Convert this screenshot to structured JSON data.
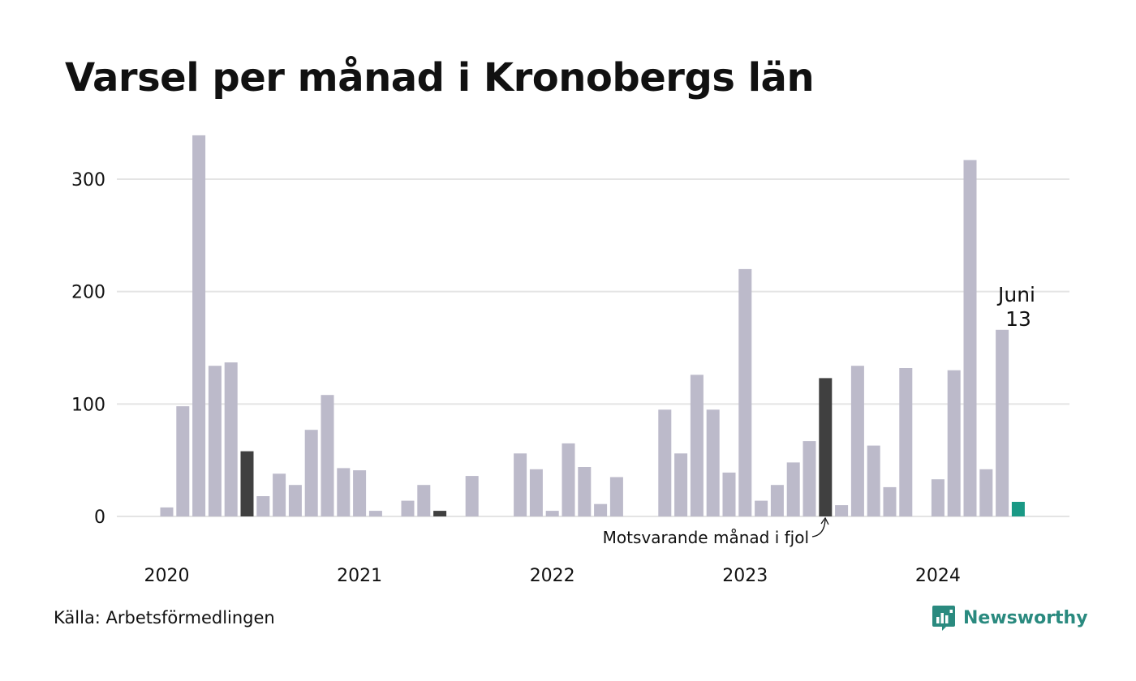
{
  "title": "Varsel per månad i Kronobergs län",
  "source": "Källa: Arbetsförmedlingen",
  "logo_text": "Newsworthy",
  "colors": {
    "bar": "#bcbaca",
    "previous_year": "#404040",
    "current": "#1a9985",
    "grid": "#e4e4e4",
    "logo": "#2a8a7f"
  },
  "chart_data": {
    "type": "bar",
    "title": "Varsel per månad i Kronobergs län",
    "xlabel": "",
    "ylabel": "",
    "ylim": [
      0,
      340
    ],
    "yticks": [
      0,
      100,
      200,
      300
    ],
    "grid": true,
    "year_labels": [
      "2020",
      "2021",
      "2022",
      "2023",
      "2024"
    ],
    "months": [
      "2020-01",
      "2020-02",
      "2020-03",
      "2020-04",
      "2020-05",
      "2020-06",
      "2020-07",
      "2020-08",
      "2020-09",
      "2020-10",
      "2020-11",
      "2020-12",
      "2021-01",
      "2021-02",
      "2021-03",
      "2021-04",
      "2021-05",
      "2021-06",
      "2021-07",
      "2021-08",
      "2021-09",
      "2021-10",
      "2021-11",
      "2021-12",
      "2022-01",
      "2022-02",
      "2022-03",
      "2022-04",
      "2022-05",
      "2022-06",
      "2022-07",
      "2022-08",
      "2022-09",
      "2022-10",
      "2022-11",
      "2022-12",
      "2023-01",
      "2023-02",
      "2023-03",
      "2023-04",
      "2023-05",
      "2023-06",
      "2023-07",
      "2023-08",
      "2023-09",
      "2023-10",
      "2023-11",
      "2023-12",
      "2024-01",
      "2024-02",
      "2024-03",
      "2024-04",
      "2024-05",
      "2024-06"
    ],
    "values": [
      8,
      98,
      339,
      134,
      137,
      58,
      18,
      38,
      28,
      77,
      108,
      43,
      41,
      5,
      0,
      14,
      28,
      5,
      0,
      36,
      0,
      0,
      56,
      42,
      5,
      65,
      44,
      11,
      35,
      0,
      0,
      95,
      56,
      126,
      95,
      39,
      220,
      14,
      28,
      48,
      67,
      123,
      10,
      134,
      63,
      26,
      132,
      0,
      33,
      130,
      317,
      42,
      166,
      13
    ],
    "highlight_previous_year": [
      "2020-06",
      "2021-06",
      "2023-06"
    ],
    "highlight_current": "2024-06",
    "annotations": {
      "previous_year": "Motsvarande månad i fjol",
      "current_month": "Juni",
      "current_value": "13"
    }
  }
}
